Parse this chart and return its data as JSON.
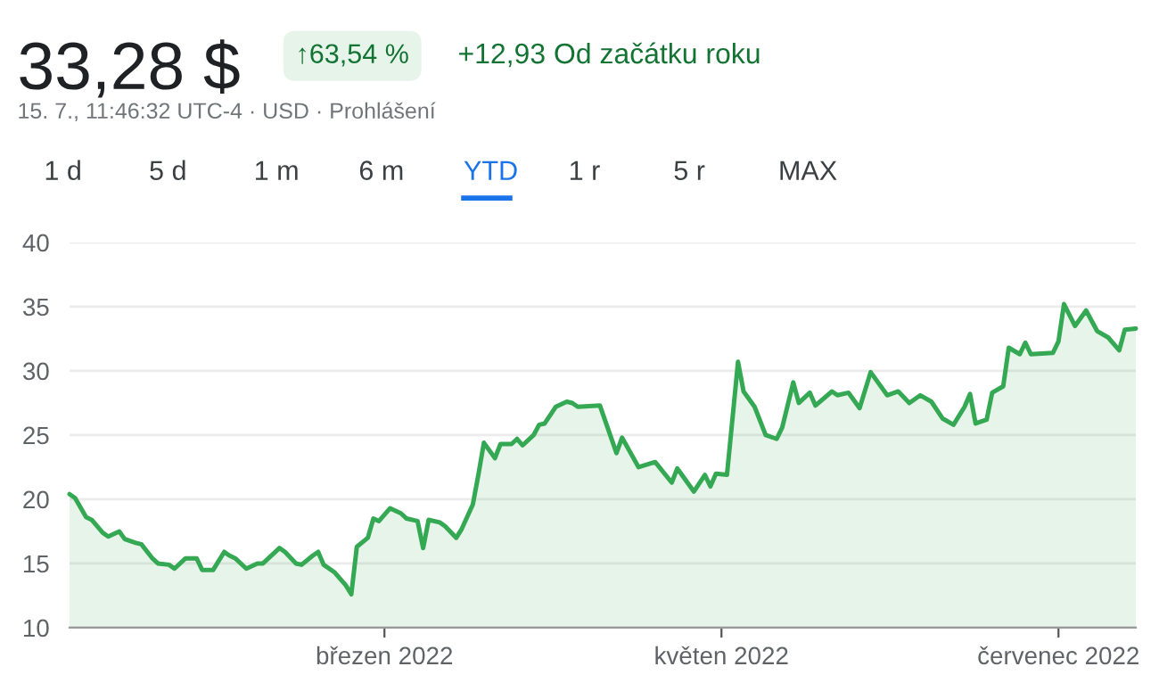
{
  "chart_data": {
    "type": "area",
    "title": "33,28 $",
    "subtitle": "15. 7., 11:46:32 UTC-4 · USD · Prohlášení",
    "annotations": [
      "↑63,54 %",
      "+12,93 Od začátku roku",
      "1 d",
      "5 d",
      "1 m",
      "6 m",
      "YTD",
      "1 r",
      "5 r",
      "MAX"
    ],
    "xlim": [
      "2022-01-03",
      "2022-07-15"
    ],
    "xticks": [
      {
        "value": "2022-03-01",
        "label": "březen 2022"
      },
      {
        "value": "2022-05-01",
        "label": "květen 2022"
      },
      {
        "value": "2022-07-01",
        "label": "červenec 2022"
      }
    ],
    "ylim": [
      10,
      40
    ],
    "yticks": [
      10,
      15,
      20,
      25,
      30,
      35,
      40
    ],
    "grid": "y",
    "series": [
      {
        "color": "#34a853",
        "x": [
          "2022-01-03",
          "2022-01-04",
          "2022-01-06",
          "2022-01-07",
          "2022-01-09",
          "2022-01-10",
          "2022-01-12",
          "2022-01-13",
          "2022-01-15",
          "2022-01-16",
          "2022-01-18",
          "2022-01-19",
          "2022-01-21",
          "2022-01-22",
          "2022-01-24",
          "2022-01-26",
          "2022-01-27",
          "2022-01-29",
          "2022-01-31",
          "2022-02-01",
          "2022-02-02",
          "2022-02-04",
          "2022-02-06",
          "2022-02-07",
          "2022-02-10",
          "2022-02-11",
          "2022-02-13",
          "2022-02-14",
          "2022-02-16",
          "2022-02-17",
          "2022-02-18",
          "2022-02-20",
          "2022-02-22",
          "2022-02-23",
          "2022-02-24",
          "2022-02-26",
          "2022-02-27",
          "2022-02-28",
          "2022-03-02",
          "2022-03-04",
          "2022-03-05",
          "2022-03-07",
          "2022-03-08",
          "2022-03-09",
          "2022-03-11",
          "2022-03-12",
          "2022-03-14",
          "2022-03-15",
          "2022-03-17",
          "2022-03-18",
          "2022-03-19",
          "2022-03-21",
          "2022-03-22",
          "2022-03-24",
          "2022-03-25",
          "2022-03-26",
          "2022-03-28",
          "2022-03-29",
          "2022-03-30",
          "2022-04-01",
          "2022-04-03",
          "2022-04-04",
          "2022-04-05",
          "2022-04-09",
          "2022-04-12",
          "2022-04-13",
          "2022-04-16",
          "2022-04-19",
          "2022-04-22",
          "2022-04-23",
          "2022-04-26",
          "2022-04-28",
          "2022-04-29",
          "2022-04-30",
          "2022-05-02",
          "2022-05-04",
          "2022-05-05",
          "2022-05-07",
          "2022-05-09",
          "2022-05-11",
          "2022-05-12",
          "2022-05-14",
          "2022-05-15",
          "2022-05-17",
          "2022-05-18",
          "2022-05-21",
          "2022-05-22",
          "2022-05-24",
          "2022-05-26",
          "2022-05-28",
          "2022-05-31",
          "2022-06-02",
          "2022-06-04",
          "2022-06-06",
          "2022-06-08",
          "2022-06-10",
          "2022-06-12",
          "2022-06-14",
          "2022-06-15",
          "2022-06-16",
          "2022-06-18",
          "2022-06-19",
          "2022-06-21",
          "2022-06-22",
          "2022-06-24",
          "2022-06-25",
          "2022-06-26",
          "2022-06-30",
          "2022-07-01",
          "2022-07-02",
          "2022-07-04",
          "2022-07-06",
          "2022-07-08",
          "2022-07-10",
          "2022-07-12",
          "2022-07-13",
          "2022-07-15"
        ],
        "values": [
          20.4,
          20.1,
          18.6,
          18.4,
          17.4,
          17.1,
          17.5,
          16.9,
          16.6,
          16.5,
          15.4,
          15.0,
          14.9,
          14.6,
          15.4,
          15.4,
          14.5,
          14.5,
          15.9,
          15.6,
          15.4,
          14.6,
          15.0,
          15.0,
          16.2,
          15.9,
          15.0,
          14.9,
          15.6,
          15.9,
          14.9,
          14.3,
          13.3,
          12.6,
          16.3,
          17.0,
          18.5,
          18.3,
          19.3,
          18.9,
          18.5,
          18.3,
          16.2,
          18.4,
          18.2,
          17.9,
          17.0,
          17.7,
          19.6,
          21.9,
          24.4,
          23.2,
          24.3,
          24.3,
          24.7,
          24.2,
          25.0,
          25.8,
          25.9,
          27.2,
          27.6,
          27.5,
          27.2,
          27.3,
          23.6,
          24.8,
          22.5,
          22.9,
          21.3,
          22.4,
          20.6,
          21.9,
          21.0,
          22.0,
          21.9,
          30.7,
          28.4,
          27.2,
          25.0,
          24.7,
          25.6,
          29.1,
          27.5,
          28.3,
          27.3,
          28.4,
          28.1,
          28.3,
          27.1,
          29.9,
          28.1,
          28.4,
          27.5,
          28.1,
          27.6,
          26.3,
          25.8,
          27.2,
          28.2,
          25.9,
          26.2,
          28.3,
          28.8,
          31.8,
          31.3,
          32.2,
          31.3,
          31.4,
          32.3,
          35.2,
          33.5,
          34.7,
          33.1,
          32.6,
          31.6,
          33.2,
          33.3
        ]
      }
    ]
  }
}
